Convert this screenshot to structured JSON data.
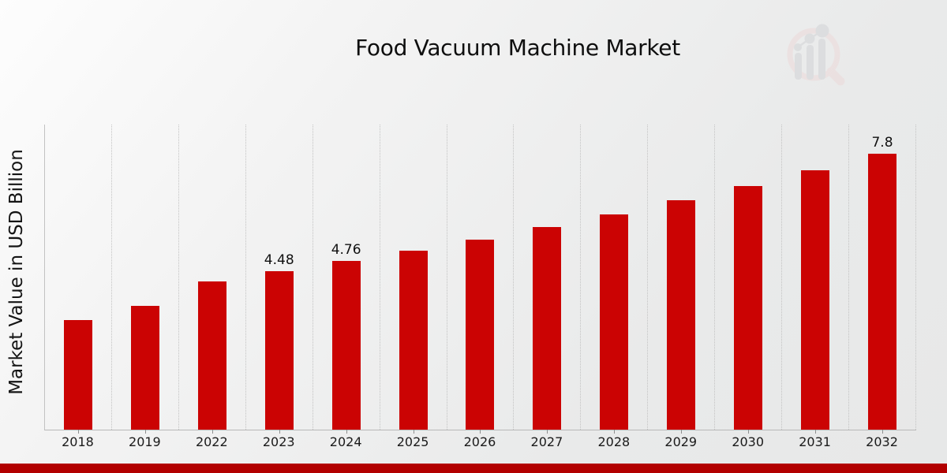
{
  "title": "Food Vacuum Machine Market",
  "y_axis": {
    "label": "Market Value in USD Billion"
  },
  "watermark": {
    "icon": "market-research-future-logo",
    "ring_color": "#ecd9d9",
    "shapes_color": "#d2d3d6"
  },
  "colors": {
    "bar": "#cb0303",
    "footer_bar": "#b20000"
  },
  "chart_data": {
    "type": "bar",
    "title": "Food Vacuum Machine Market",
    "xlabel": "",
    "ylabel": "Market Value in USD Billion",
    "unit": "USD Billion",
    "categories": [
      "2018",
      "2019",
      "2022",
      "2023",
      "2024",
      "2025",
      "2026",
      "2027",
      "2028",
      "2029",
      "2030",
      "2031",
      "2032"
    ],
    "values": [
      3.1,
      3.5,
      4.19,
      4.48,
      4.76,
      5.06,
      5.38,
      5.73,
      6.09,
      6.48,
      6.89,
      7.33,
      7.8
    ],
    "bar_labels": [
      "",
      "",
      "",
      "4.48",
      "4.76",
      "",
      "",
      "",
      "",
      "",
      "",
      "",
      "7.8"
    ],
    "ylim": [
      0,
      8.6
    ],
    "grid": "vertical-dotted",
    "legend": "none",
    "bar_color": "#cb0303"
  }
}
